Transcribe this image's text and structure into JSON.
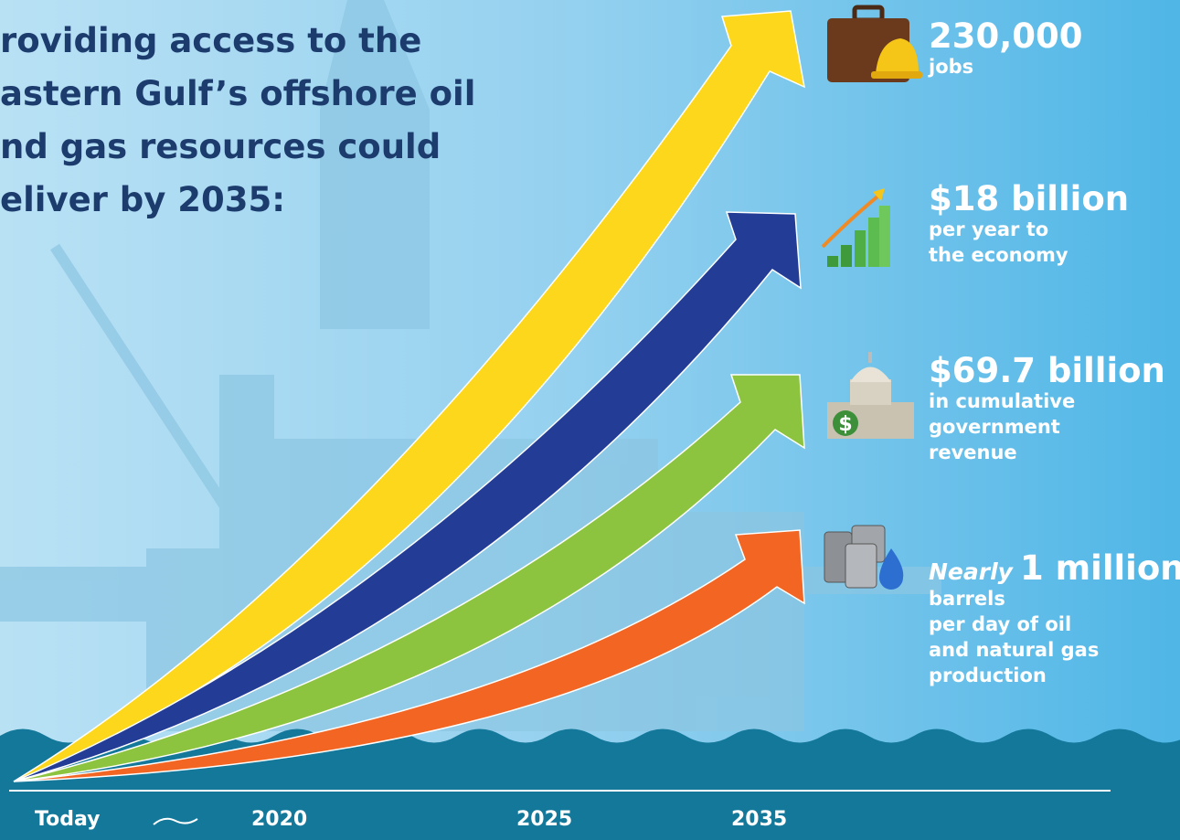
{
  "heading": {
    "lines": [
      "roviding access to the",
      "astern Gulf’s offshore oil",
      "nd gas resources could",
      "eliver by 2035:"
    ]
  },
  "items": [
    {
      "value": "230,000",
      "description": [
        "jobs"
      ]
    },
    {
      "value": "$18 billion",
      "description": [
        "per year to",
        "the economy"
      ]
    },
    {
      "value": "$69.7 billion",
      "description": [
        "in cumulative",
        "government",
        "revenue"
      ]
    },
    {
      "qualifier": "Nearly",
      "value": "1 million",
      "description": [
        "barrels",
        "per day of oil",
        "and natural gas",
        "production"
      ]
    }
  ],
  "timeline": {
    "labels": [
      "Today",
      "2020",
      "2025",
      "2035"
    ]
  }
}
